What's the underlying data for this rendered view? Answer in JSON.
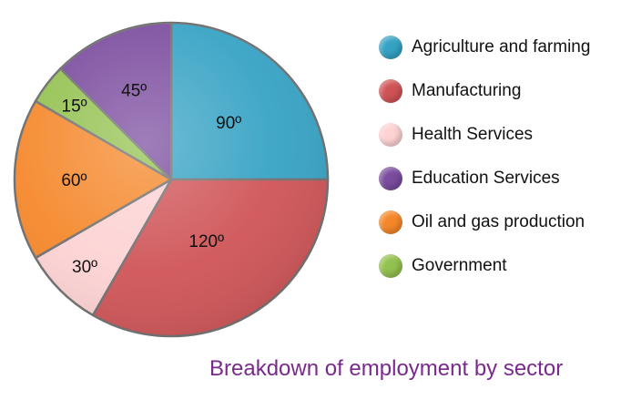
{
  "chart_data": {
    "type": "pie",
    "title": "Breakdown of employment by sector",
    "unit": "degrees",
    "slices": [
      {
        "name": "Agriculture and farming",
        "value": 90,
        "label": "90º",
        "color": "#35a2c4"
      },
      {
        "name": "Manufacturing",
        "value": 120,
        "label": "120º",
        "color": "#cf5356"
      },
      {
        "name": "Health Services",
        "value": 30,
        "label": "30º",
        "color": "#fdd2d3"
      },
      {
        "name": "Oil and gas production",
        "value": 60,
        "label": "60º",
        "color": "#f5872a"
      },
      {
        "name": "Government",
        "value": 15,
        "label": "15º",
        "color": "#93c14f"
      },
      {
        "name": "Education Services",
        "value": 45,
        "label": "45º",
        "color": "#7a4b9e"
      }
    ],
    "legend": {
      "placement": "right",
      "items": [
        {
          "label": "Agriculture and farming",
          "color": "#35a2c4"
        },
        {
          "label": "Manufacturing",
          "color": "#cf5356"
        },
        {
          "label": "Health Services",
          "color": "#fdd2d3"
        },
        {
          "label": "Education Services",
          "color": "#7a4b9e"
        },
        {
          "label": "Oil and gas production",
          "color": "#f5872a"
        },
        {
          "label": "Government",
          "color": "#93c14f"
        }
      ]
    },
    "title_color": "#7a2a8c",
    "edge_color": "#6f6f6f"
  }
}
